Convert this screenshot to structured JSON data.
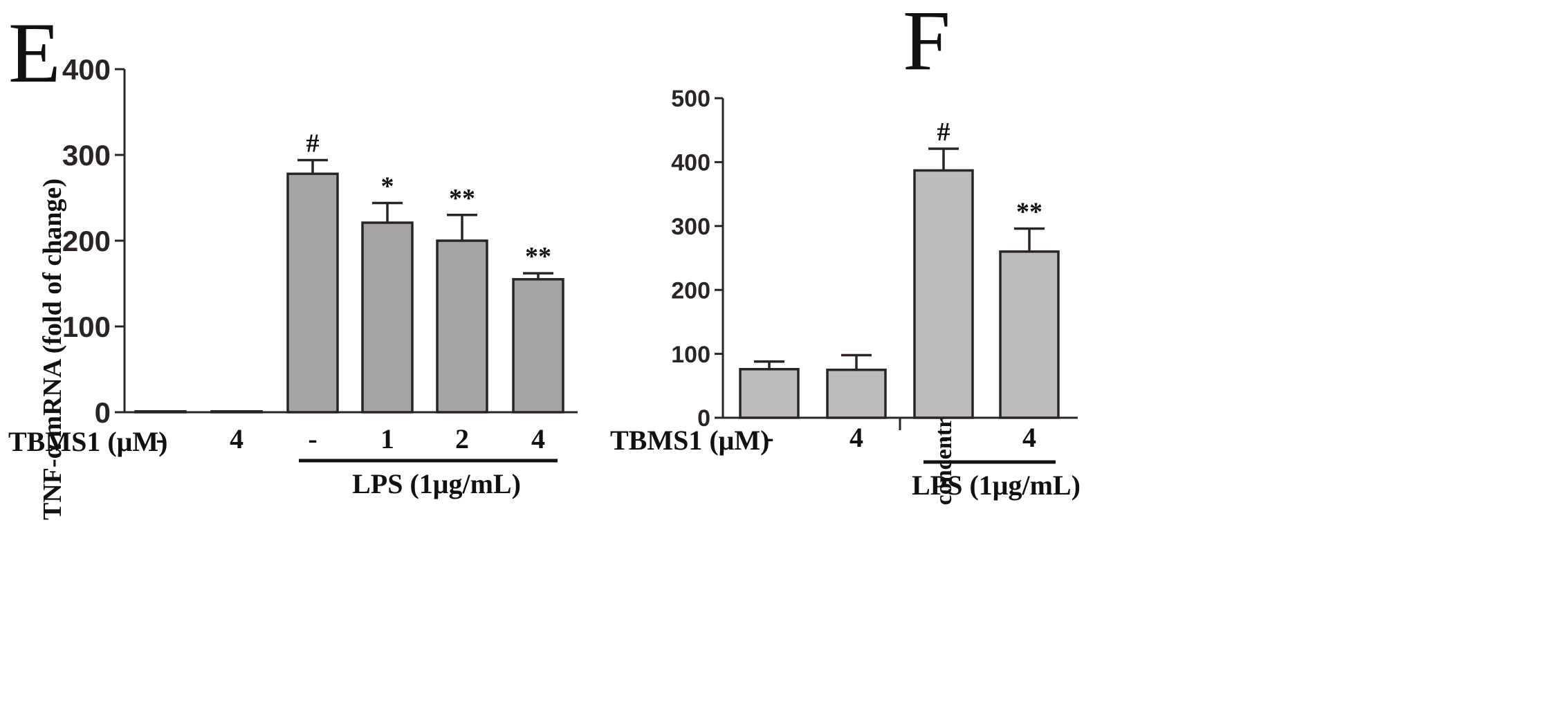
{
  "chart_data": [
    {
      "type": "bar",
      "panel_label": "E",
      "ylabel": "TNF-α mRNA (fold of change)",
      "xlabel": "",
      "ylim": [
        0,
        400
      ],
      "yticks": [
        "0",
        "100",
        "200",
        "300",
        "400"
      ],
      "categories": [
        "-",
        "4",
        "-",
        "1",
        "2",
        "4"
      ],
      "values": [
        1,
        1,
        278,
        221,
        200,
        155
      ],
      "errors": [
        0,
        0,
        16,
        23,
        30,
        7
      ],
      "significance": [
        "",
        "",
        "#",
        "*",
        "**",
        "**"
      ],
      "row_label": "TBMS1 (μM)",
      "group_label": "LPS (1μg/mL)",
      "group_span": [
        2,
        5
      ],
      "bar_color": "#a4a4a4"
    },
    {
      "type": "bar",
      "panel_label": "F",
      "ylabel": "concentration of TNF-α (pg/mL)",
      "xlabel": "",
      "ylim": [
        0,
        500
      ],
      "yticks": [
        "0",
        "100",
        "200",
        "300",
        "400",
        "500"
      ],
      "categories": [
        "-",
        "4",
        "-",
        "4"
      ],
      "values": [
        76,
        75,
        387,
        260
      ],
      "errors": [
        12,
        23,
        34,
        36
      ],
      "significance": [
        "",
        "",
        "#",
        "**"
      ],
      "row_label": "TBMS1 (μM)",
      "group_label": "LPS (1μg/mL)",
      "group_span": [
        2,
        3
      ],
      "bar_color": "#bcbcbc"
    }
  ]
}
